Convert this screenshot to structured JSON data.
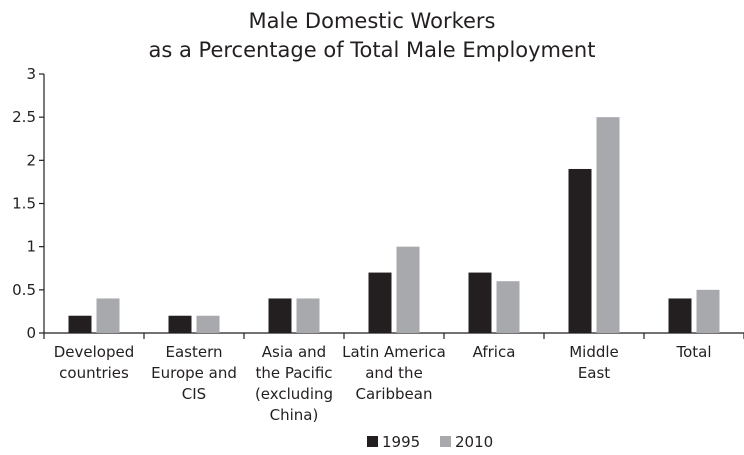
{
  "chart_data": {
    "type": "bar",
    "title_lines": [
      "Male Domestic Workers",
      "as a Percentage of Total Male Employment"
    ],
    "xlabel": "",
    "ylabel": "",
    "ylim": [
      0,
      3
    ],
    "yticks": [
      "0",
      "0.5",
      "1",
      "1.5",
      "2",
      "2.5",
      "3"
    ],
    "grid": false,
    "legend_position": "bottom-center",
    "categories": [
      {
        "label": [
          "Developed",
          "countries"
        ]
      },
      {
        "label": [
          "Eastern",
          "Europe and",
          "CIS"
        ]
      },
      {
        "label": [
          "Asia and",
          "the Pacific",
          "(excluding",
          "China)"
        ]
      },
      {
        "label": [
          "Latin America",
          "and the",
          "Caribbean"
        ]
      },
      {
        "label": [
          "Africa"
        ]
      },
      {
        "label": [
          "Middle",
          "East"
        ]
      },
      {
        "label": [
          "Total"
        ]
      }
    ],
    "series": [
      {
        "name": "1995",
        "color": "#231f20",
        "values": [
          0.2,
          0.2,
          0.4,
          0.7,
          0.7,
          1.9,
          0.4
        ]
      },
      {
        "name": "2010",
        "color": "#a7a9ac",
        "values": [
          0.4,
          0.2,
          0.4,
          1.0,
          0.6,
          2.5,
          0.5
        ]
      }
    ]
  }
}
